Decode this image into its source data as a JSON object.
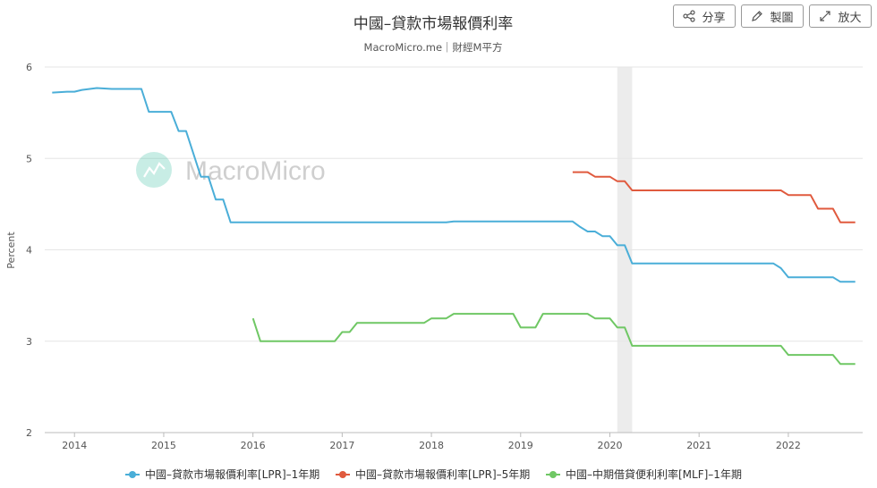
{
  "header": {
    "title": "中國–貸款市場報價利率",
    "subtitle": "MacroMicro.me｜財經M平方"
  },
  "toolbar": {
    "share_label": "分享",
    "draw_label": "製圖",
    "expand_label": "放大"
  },
  "watermark": {
    "text": "MacroMicro"
  },
  "colors": {
    "lpr_1y": "#4aaed8",
    "lpr_5y": "#e05a3e",
    "mlf_1y": "#6fc764",
    "recession_band": "#ececec",
    "grid": "#e6e6e6"
  },
  "chart_data": {
    "type": "line",
    "title": "中國–貸款市場報價利率",
    "ylabel": "Percent",
    "xlabel": "",
    "ylim": [
      2,
      6
    ],
    "xlim": [
      "2013-09",
      "2022-11"
    ],
    "yticks": [
      "2",
      "3",
      "4",
      "5",
      "6"
    ],
    "xticks": [
      "2014",
      "2015",
      "2016",
      "2017",
      "2018",
      "2019",
      "2020",
      "2021",
      "2022"
    ],
    "grid": true,
    "legend_position": "bottom",
    "shaded_periods": [
      {
        "start": "2020-02",
        "end": "2020-04"
      }
    ],
    "series": [
      {
        "name": "中國–貸款市場報價利率[LPR]–1年期",
        "color": "#4aaed8",
        "points": [
          [
            "2013-10",
            5.72
          ],
          [
            "2013-12",
            5.73
          ],
          [
            "2014-01",
            5.73
          ],
          [
            "2014-02",
            5.75
          ],
          [
            "2014-04",
            5.77
          ],
          [
            "2014-06",
            5.76
          ],
          [
            "2014-10",
            5.76
          ],
          [
            "2014-11",
            5.51
          ],
          [
            "2015-02",
            5.51
          ],
          [
            "2015-03",
            5.3
          ],
          [
            "2015-04",
            5.3
          ],
          [
            "2015-06",
            4.8
          ],
          [
            "2015-07",
            4.8
          ],
          [
            "2015-08",
            4.55
          ],
          [
            "2015-09",
            4.55
          ],
          [
            "2015-10",
            4.3
          ],
          [
            "2018-03",
            4.3
          ],
          [
            "2018-04",
            4.31
          ],
          [
            "2019-08",
            4.31
          ],
          [
            "2019-09",
            4.25
          ],
          [
            "2019-10",
            4.2
          ],
          [
            "2019-11",
            4.2
          ],
          [
            "2019-12",
            4.15
          ],
          [
            "2020-01",
            4.15
          ],
          [
            "2020-02",
            4.05
          ],
          [
            "2020-03",
            4.05
          ],
          [
            "2020-04",
            3.85
          ],
          [
            "2021-11",
            3.85
          ],
          [
            "2021-12",
            3.8
          ],
          [
            "2022-01",
            3.7
          ],
          [
            "2022-07",
            3.7
          ],
          [
            "2022-08",
            3.65
          ],
          [
            "2022-10",
            3.65
          ]
        ]
      },
      {
        "name": "中國–貸款市場報價利率[LPR]–5年期",
        "color": "#e05a3e",
        "points": [
          [
            "2019-08",
            4.85
          ],
          [
            "2019-10",
            4.85
          ],
          [
            "2019-11",
            4.8
          ],
          [
            "2020-01",
            4.8
          ],
          [
            "2020-02",
            4.75
          ],
          [
            "2020-03",
            4.75
          ],
          [
            "2020-04",
            4.65
          ],
          [
            "2021-12",
            4.65
          ],
          [
            "2022-01",
            4.6
          ],
          [
            "2022-04",
            4.6
          ],
          [
            "2022-05",
            4.45
          ],
          [
            "2022-07",
            4.45
          ],
          [
            "2022-08",
            4.3
          ],
          [
            "2022-10",
            4.3
          ]
        ]
      },
      {
        "name": "中國–中期借貸便利利率[MLF]–1年期",
        "color": "#6fc764",
        "points": [
          [
            "2016-01",
            3.25
          ],
          [
            "2016-02",
            3.0
          ],
          [
            "2016-12",
            3.0
          ],
          [
            "2017-01",
            3.1
          ],
          [
            "2017-02",
            3.1
          ],
          [
            "2017-03",
            3.2
          ],
          [
            "2017-12",
            3.2
          ],
          [
            "2018-01",
            3.25
          ],
          [
            "2018-03",
            3.25
          ],
          [
            "2018-04",
            3.3
          ],
          [
            "2018-12",
            3.3
          ],
          [
            "2019-01",
            3.15
          ],
          [
            "2019-03",
            3.15
          ],
          [
            "2019-04",
            3.3
          ],
          [
            "2019-10",
            3.3
          ],
          [
            "2019-11",
            3.25
          ],
          [
            "2020-01",
            3.25
          ],
          [
            "2020-02",
            3.15
          ],
          [
            "2020-03",
            3.15
          ],
          [
            "2020-04",
            2.95
          ],
          [
            "2021-12",
            2.95
          ],
          [
            "2022-01",
            2.85
          ],
          [
            "2022-07",
            2.85
          ],
          [
            "2022-08",
            2.75
          ],
          [
            "2022-10",
            2.75
          ]
        ]
      }
    ]
  }
}
